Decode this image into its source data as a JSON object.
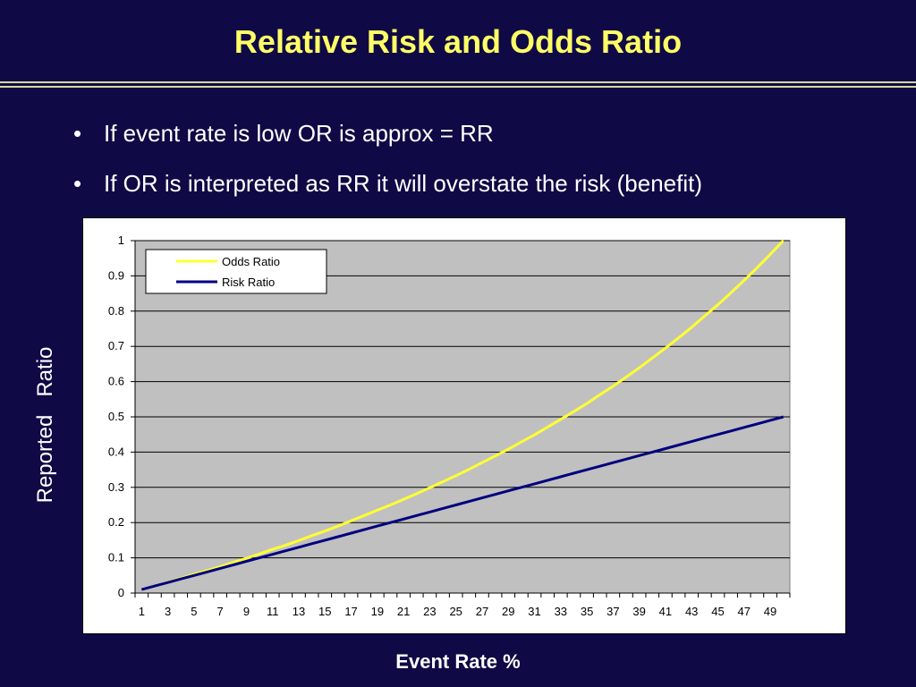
{
  "slide": {
    "title": "Relative Risk and Odds Ratio",
    "bullets": [
      "If event rate is low  OR is approx = RR",
      "If OR is interpreted as RR  it will overstate the risk (benefit)"
    ],
    "bullet_char": "•"
  },
  "chart_data": {
    "type": "line",
    "title": "",
    "xlabel": "Event Rate %",
    "ylabel": "Reported   Ratio",
    "x": [
      1,
      2,
      3,
      4,
      5,
      6,
      7,
      8,
      9,
      10,
      11,
      12,
      13,
      14,
      15,
      16,
      17,
      18,
      19,
      20,
      21,
      22,
      23,
      24,
      25,
      26,
      27,
      28,
      29,
      30,
      31,
      32,
      33,
      34,
      35,
      36,
      37,
      38,
      39,
      40,
      41,
      42,
      43,
      44,
      45,
      46,
      47,
      48,
      49,
      50
    ],
    "x_tick_labels": [
      "1",
      "3",
      "5",
      "7",
      "9",
      "11",
      "13",
      "15",
      "17",
      "19",
      "21",
      "23",
      "25",
      "27",
      "29",
      "31",
      "33",
      "35",
      "37",
      "39",
      "41",
      "43",
      "45",
      "47",
      "49"
    ],
    "ylim": [
      0,
      1
    ],
    "y_ticks": [
      "0",
      "0.1",
      "0.2",
      "0.3",
      "0.4",
      "0.5",
      "0.6",
      "0.7",
      "0.8",
      "0.9",
      "1"
    ],
    "grid": true,
    "plot_background": "#c0c0c0",
    "legend_position": "top-left",
    "series": [
      {
        "name": "Odds Ratio",
        "color": "#ffff33",
        "values": [
          0.01,
          0.02,
          0.031,
          0.042,
          0.053,
          0.064,
          0.075,
          0.087,
          0.099,
          0.111,
          0.124,
          0.136,
          0.149,
          0.163,
          0.176,
          0.19,
          0.205,
          0.22,
          0.235,
          0.25,
          0.266,
          0.282,
          0.299,
          0.316,
          0.333,
          0.351,
          0.37,
          0.389,
          0.408,
          0.429,
          0.449,
          0.471,
          0.493,
          0.515,
          0.538,
          0.563,
          0.587,
          0.613,
          0.639,
          0.667,
          0.695,
          0.724,
          0.754,
          0.786,
          0.818,
          0.852,
          0.887,
          0.923,
          0.961,
          1.0
        ]
      },
      {
        "name": "Risk Ratio",
        "color": "#000080",
        "values": [
          0.01,
          0.02,
          0.03,
          0.04,
          0.05,
          0.06,
          0.07,
          0.08,
          0.09,
          0.1,
          0.11,
          0.12,
          0.13,
          0.14,
          0.15,
          0.16,
          0.17,
          0.18,
          0.19,
          0.2,
          0.21,
          0.22,
          0.23,
          0.24,
          0.25,
          0.26,
          0.27,
          0.28,
          0.29,
          0.3,
          0.31,
          0.32,
          0.33,
          0.34,
          0.35,
          0.36,
          0.37,
          0.38,
          0.39,
          0.4,
          0.41,
          0.42,
          0.43,
          0.44,
          0.45,
          0.46,
          0.47,
          0.48,
          0.49,
          0.5
        ]
      }
    ]
  }
}
